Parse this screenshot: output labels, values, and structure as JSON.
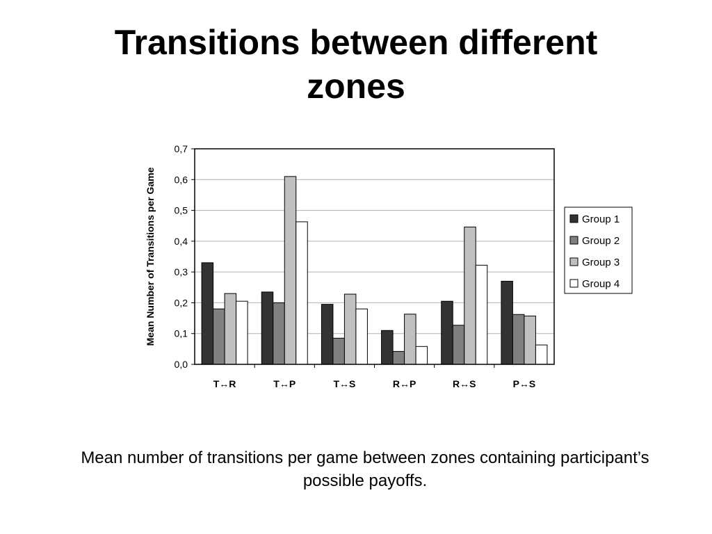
{
  "slide": {
    "title": "Transitions between different zones",
    "caption": "Mean number of transitions per game between zones containing participant’s possible payoffs."
  },
  "chart_data": {
    "type": "bar",
    "categories": [
      "T↔R",
      "T↔P",
      "T↔S",
      "R↔P",
      "R↔S",
      "P↔S"
    ],
    "series": [
      {
        "name": "Group 1",
        "color": "#333333",
        "values": [
          0.33,
          0.235,
          0.195,
          0.11,
          0.205,
          0.27
        ]
      },
      {
        "name": "Group 2",
        "color": "#808080",
        "values": [
          0.18,
          0.2,
          0.085,
          0.042,
          0.127,
          0.162
        ]
      },
      {
        "name": "Group 3",
        "color": "#c0c0c0",
        "values": [
          0.23,
          0.61,
          0.228,
          0.163,
          0.446,
          0.157
        ]
      },
      {
        "name": "Group 4",
        "color": "#ffffff",
        "values": [
          0.205,
          0.463,
          0.18,
          0.058,
          0.322,
          0.063
        ]
      }
    ],
    "ylabel": "Mean Number of Transitions per Game",
    "xlabel": "",
    "ylim": [
      0,
      0.7
    ],
    "yticks": [
      "0,0",
      "0,1",
      "0,2",
      "0,3",
      "0,4",
      "0,5",
      "0,6",
      "0,7"
    ],
    "grid": true,
    "legend_position": "right"
  }
}
